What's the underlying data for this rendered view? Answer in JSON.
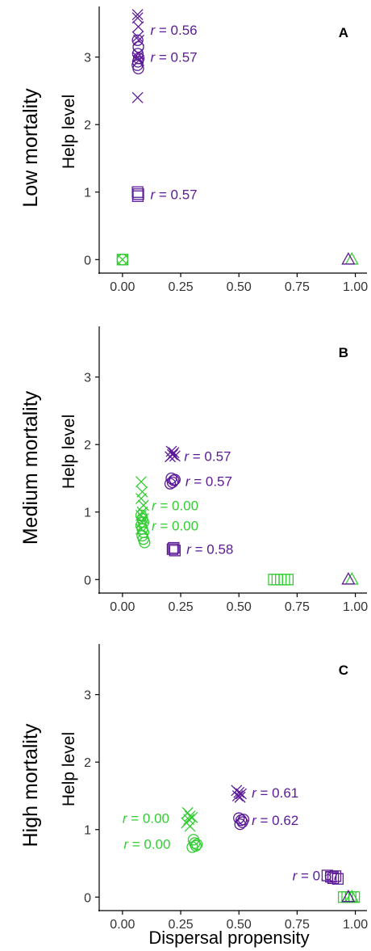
{
  "colors": {
    "purple": "#5b1a96",
    "green": "#33cc33",
    "axis": "#000000",
    "text": "#000000"
  },
  "figure": {
    "xlabel": "Dispersal propensity"
  },
  "chart_data": [
    {
      "type": "scatter",
      "panel_label": "A",
      "row_title": "Low mortality",
      "ylabel": "Help level",
      "xlim": [
        -0.1,
        1.05
      ],
      "ylim": [
        -0.2,
        3.75
      ],
      "x_ticks": [
        "0.00",
        "0.25",
        "0.50",
        "0.75",
        "1.00"
      ],
      "y_ticks": [
        "0",
        "1",
        "2",
        "3"
      ],
      "series": [
        {
          "color": "purple",
          "marker": "x",
          "points": [
            [
              0.065,
              3.63
            ],
            [
              0.065,
              3.58
            ],
            [
              0.068,
              3.45
            ],
            [
              0.065,
              3.3
            ],
            [
              0.07,
              3.25
            ],
            [
              0.068,
              3.05
            ],
            [
              0.065,
              3.0
            ],
            [
              0.07,
              2.95
            ],
            [
              0.065,
              2.4
            ]
          ]
        },
        {
          "color": "purple",
          "marker": "circle",
          "points": [
            [
              0.065,
              3.25
            ],
            [
              0.068,
              3.15
            ],
            [
              0.066,
              3.05
            ],
            [
              0.07,
              2.98
            ],
            [
              0.066,
              2.93
            ],
            [
              0.064,
              2.88
            ],
            [
              0.068,
              2.83
            ]
          ]
        },
        {
          "color": "purple",
          "marker": "square",
          "points": [
            [
              0.065,
              1.0
            ],
            [
              0.068,
              0.97
            ],
            [
              0.066,
              0.94
            ]
          ]
        },
        {
          "color": "green",
          "marker": "square",
          "points": [
            [
              0.0,
              0.0
            ]
          ]
        },
        {
          "color": "green",
          "marker": "x",
          "points": [
            [
              0.0,
              0.0
            ]
          ]
        },
        {
          "color": "green",
          "marker": "circle",
          "points": [
            [
              0.0,
              0.0
            ]
          ]
        },
        {
          "color": "green",
          "marker": "triangle",
          "points": [
            [
              0.985,
              0.0
            ]
          ]
        },
        {
          "color": "purple",
          "marker": "triangle",
          "points": [
            [
              0.97,
              0.0
            ]
          ]
        }
      ],
      "annotations": [
        {
          "prefix": "r",
          "value": " = 0.56",
          "x": 0.12,
          "y": 3.4,
          "color": "purple"
        },
        {
          "prefix": "r",
          "value": " = 0.57",
          "x": 0.12,
          "y": 3.0,
          "color": "purple"
        },
        {
          "prefix": "r",
          "value": " = 0.57",
          "x": 0.12,
          "y": 0.97,
          "color": "purple"
        }
      ]
    },
    {
      "type": "scatter",
      "panel_label": "B",
      "row_title": "Medium mortality",
      "ylabel": "Help level",
      "xlim": [
        -0.1,
        1.05
      ],
      "ylim": [
        -0.2,
        3.75
      ],
      "x_ticks": [
        "0.00",
        "0.25",
        "0.50",
        "0.75",
        "1.00"
      ],
      "y_ticks": [
        "0",
        "1",
        "2",
        "3"
      ],
      "series": [
        {
          "color": "purple",
          "marker": "x",
          "points": [
            [
              0.21,
              1.9
            ],
            [
              0.22,
              1.88
            ],
            [
              0.215,
              1.85
            ],
            [
              0.225,
              1.83
            ],
            [
              0.205,
              1.82
            ]
          ]
        },
        {
          "color": "purple",
          "marker": "circle",
          "points": [
            [
              0.21,
              1.5
            ],
            [
              0.22,
              1.47
            ],
            [
              0.215,
              1.44
            ],
            [
              0.205,
              1.42
            ],
            [
              0.225,
              1.48
            ]
          ]
        },
        {
          "color": "purple",
          "marker": "square",
          "points": [
            [
              0.215,
              0.45
            ],
            [
              0.225,
              0.43
            ],
            [
              0.22,
              0.47
            ]
          ]
        },
        {
          "color": "green",
          "marker": "x",
          "points": [
            [
              0.08,
              1.45
            ],
            [
              0.085,
              1.3
            ],
            [
              0.08,
              1.2
            ],
            [
              0.09,
              1.1
            ],
            [
              0.085,
              1.0
            ],
            [
              0.08,
              0.95
            ],
            [
              0.09,
              0.9
            ],
            [
              0.085,
              0.85
            ],
            [
              0.08,
              0.75
            ]
          ]
        },
        {
          "color": "green",
          "marker": "circle",
          "points": [
            [
              0.08,
              0.95
            ],
            [
              0.085,
              0.9
            ],
            [
              0.09,
              0.85
            ],
            [
              0.08,
              0.8
            ],
            [
              0.085,
              0.75
            ],
            [
              0.09,
              0.7
            ],
            [
              0.085,
              0.65
            ],
            [
              0.09,
              0.6
            ],
            [
              0.095,
              0.55
            ]
          ]
        },
        {
          "color": "green",
          "marker": "square",
          "points": [
            [
              0.65,
              0.0
            ],
            [
              0.665,
              0.0
            ],
            [
              0.68,
              0.0
            ],
            [
              0.695,
              0.0
            ],
            [
              0.71,
              0.0
            ]
          ]
        },
        {
          "color": "green",
          "marker": "triangle",
          "points": [
            [
              0.985,
              0.0
            ]
          ]
        },
        {
          "color": "purple",
          "marker": "triangle",
          "points": [
            [
              0.97,
              0.0
            ]
          ]
        }
      ],
      "annotations": [
        {
          "prefix": "r",
          "value": " = 0.57",
          "x": 0.265,
          "y": 1.83,
          "color": "purple"
        },
        {
          "prefix": "r",
          "value": " = 0.57",
          "x": 0.27,
          "y": 1.46,
          "color": "purple"
        },
        {
          "prefix": "r",
          "value": " = 0.00",
          "x": 0.125,
          "y": 1.1,
          "color": "green"
        },
        {
          "prefix": "r",
          "value": " = 0.00",
          "x": 0.125,
          "y": 0.8,
          "color": "green"
        },
        {
          "prefix": "r",
          "value": " = 0.58",
          "x": 0.275,
          "y": 0.45,
          "color": "purple"
        }
      ]
    },
    {
      "type": "scatter",
      "panel_label": "C",
      "row_title": "High mortality",
      "ylabel": "Help level",
      "xlim": [
        -0.1,
        1.05
      ],
      "ylim": [
        -0.2,
        3.75
      ],
      "x_ticks": [
        "0.00",
        "0.25",
        "0.50",
        "0.75",
        "1.00"
      ],
      "y_ticks": [
        "0",
        "1",
        "2",
        "3"
      ],
      "series": [
        {
          "color": "purple",
          "marker": "x",
          "points": [
            [
              0.49,
              1.58
            ],
            [
              0.5,
              1.55
            ],
            [
              0.495,
              1.5
            ],
            [
              0.505,
              1.48
            ],
            [
              0.51,
              1.53
            ]
          ]
        },
        {
          "color": "purple",
          "marker": "circle",
          "points": [
            [
              0.5,
              1.17
            ],
            [
              0.51,
              1.14
            ],
            [
              0.515,
              1.11
            ],
            [
              0.505,
              1.08
            ],
            [
              0.52,
              1.15
            ]
          ]
        },
        {
          "color": "purple",
          "marker": "square",
          "points": [
            [
              0.88,
              0.32
            ],
            [
              0.895,
              0.3
            ],
            [
              0.905,
              0.28
            ],
            [
              0.915,
              0.31
            ],
            [
              0.925,
              0.27
            ]
          ]
        },
        {
          "color": "green",
          "marker": "x",
          "points": [
            [
              0.28,
              1.25
            ],
            [
              0.29,
              1.2
            ],
            [
              0.285,
              1.15
            ],
            [
              0.275,
              1.1
            ],
            [
              0.29,
              1.05
            ],
            [
              0.3,
              1.18
            ]
          ]
        },
        {
          "color": "green",
          "marker": "circle",
          "points": [
            [
              0.305,
              0.85
            ],
            [
              0.31,
              0.8
            ],
            [
              0.315,
              0.76
            ],
            [
              0.3,
              0.74
            ],
            [
              0.32,
              0.78
            ]
          ]
        },
        {
          "color": "green",
          "marker": "square",
          "points": [
            [
              0.95,
              0.0
            ],
            [
              0.965,
              0.0
            ],
            [
              0.98,
              0.0
            ],
            [
              0.995,
              0.0
            ]
          ]
        },
        {
          "color": "green",
          "marker": "triangle",
          "points": [
            [
              0.985,
              0.0
            ]
          ]
        },
        {
          "color": "purple",
          "marker": "triangle",
          "points": [
            [
              0.97,
              0.0
            ]
          ]
        }
      ],
      "annotations": [
        {
          "prefix": "r",
          "value": " = 0.61",
          "x": 0.555,
          "y": 1.55,
          "color": "purple"
        },
        {
          "prefix": "r",
          "value": " = 0.62",
          "x": 0.555,
          "y": 1.14,
          "color": "purple"
        },
        {
          "prefix": "r",
          "value": " = 0.00",
          "x": 0.0,
          "y": 1.17,
          "color": "green"
        },
        {
          "prefix": "r",
          "value": " = 0.00",
          "x": 0.005,
          "y": 0.79,
          "color": "green"
        },
        {
          "prefix": "r",
          "value": " = 0.67",
          "x": 0.73,
          "y": 0.32,
          "color": "purple"
        }
      ]
    }
  ]
}
